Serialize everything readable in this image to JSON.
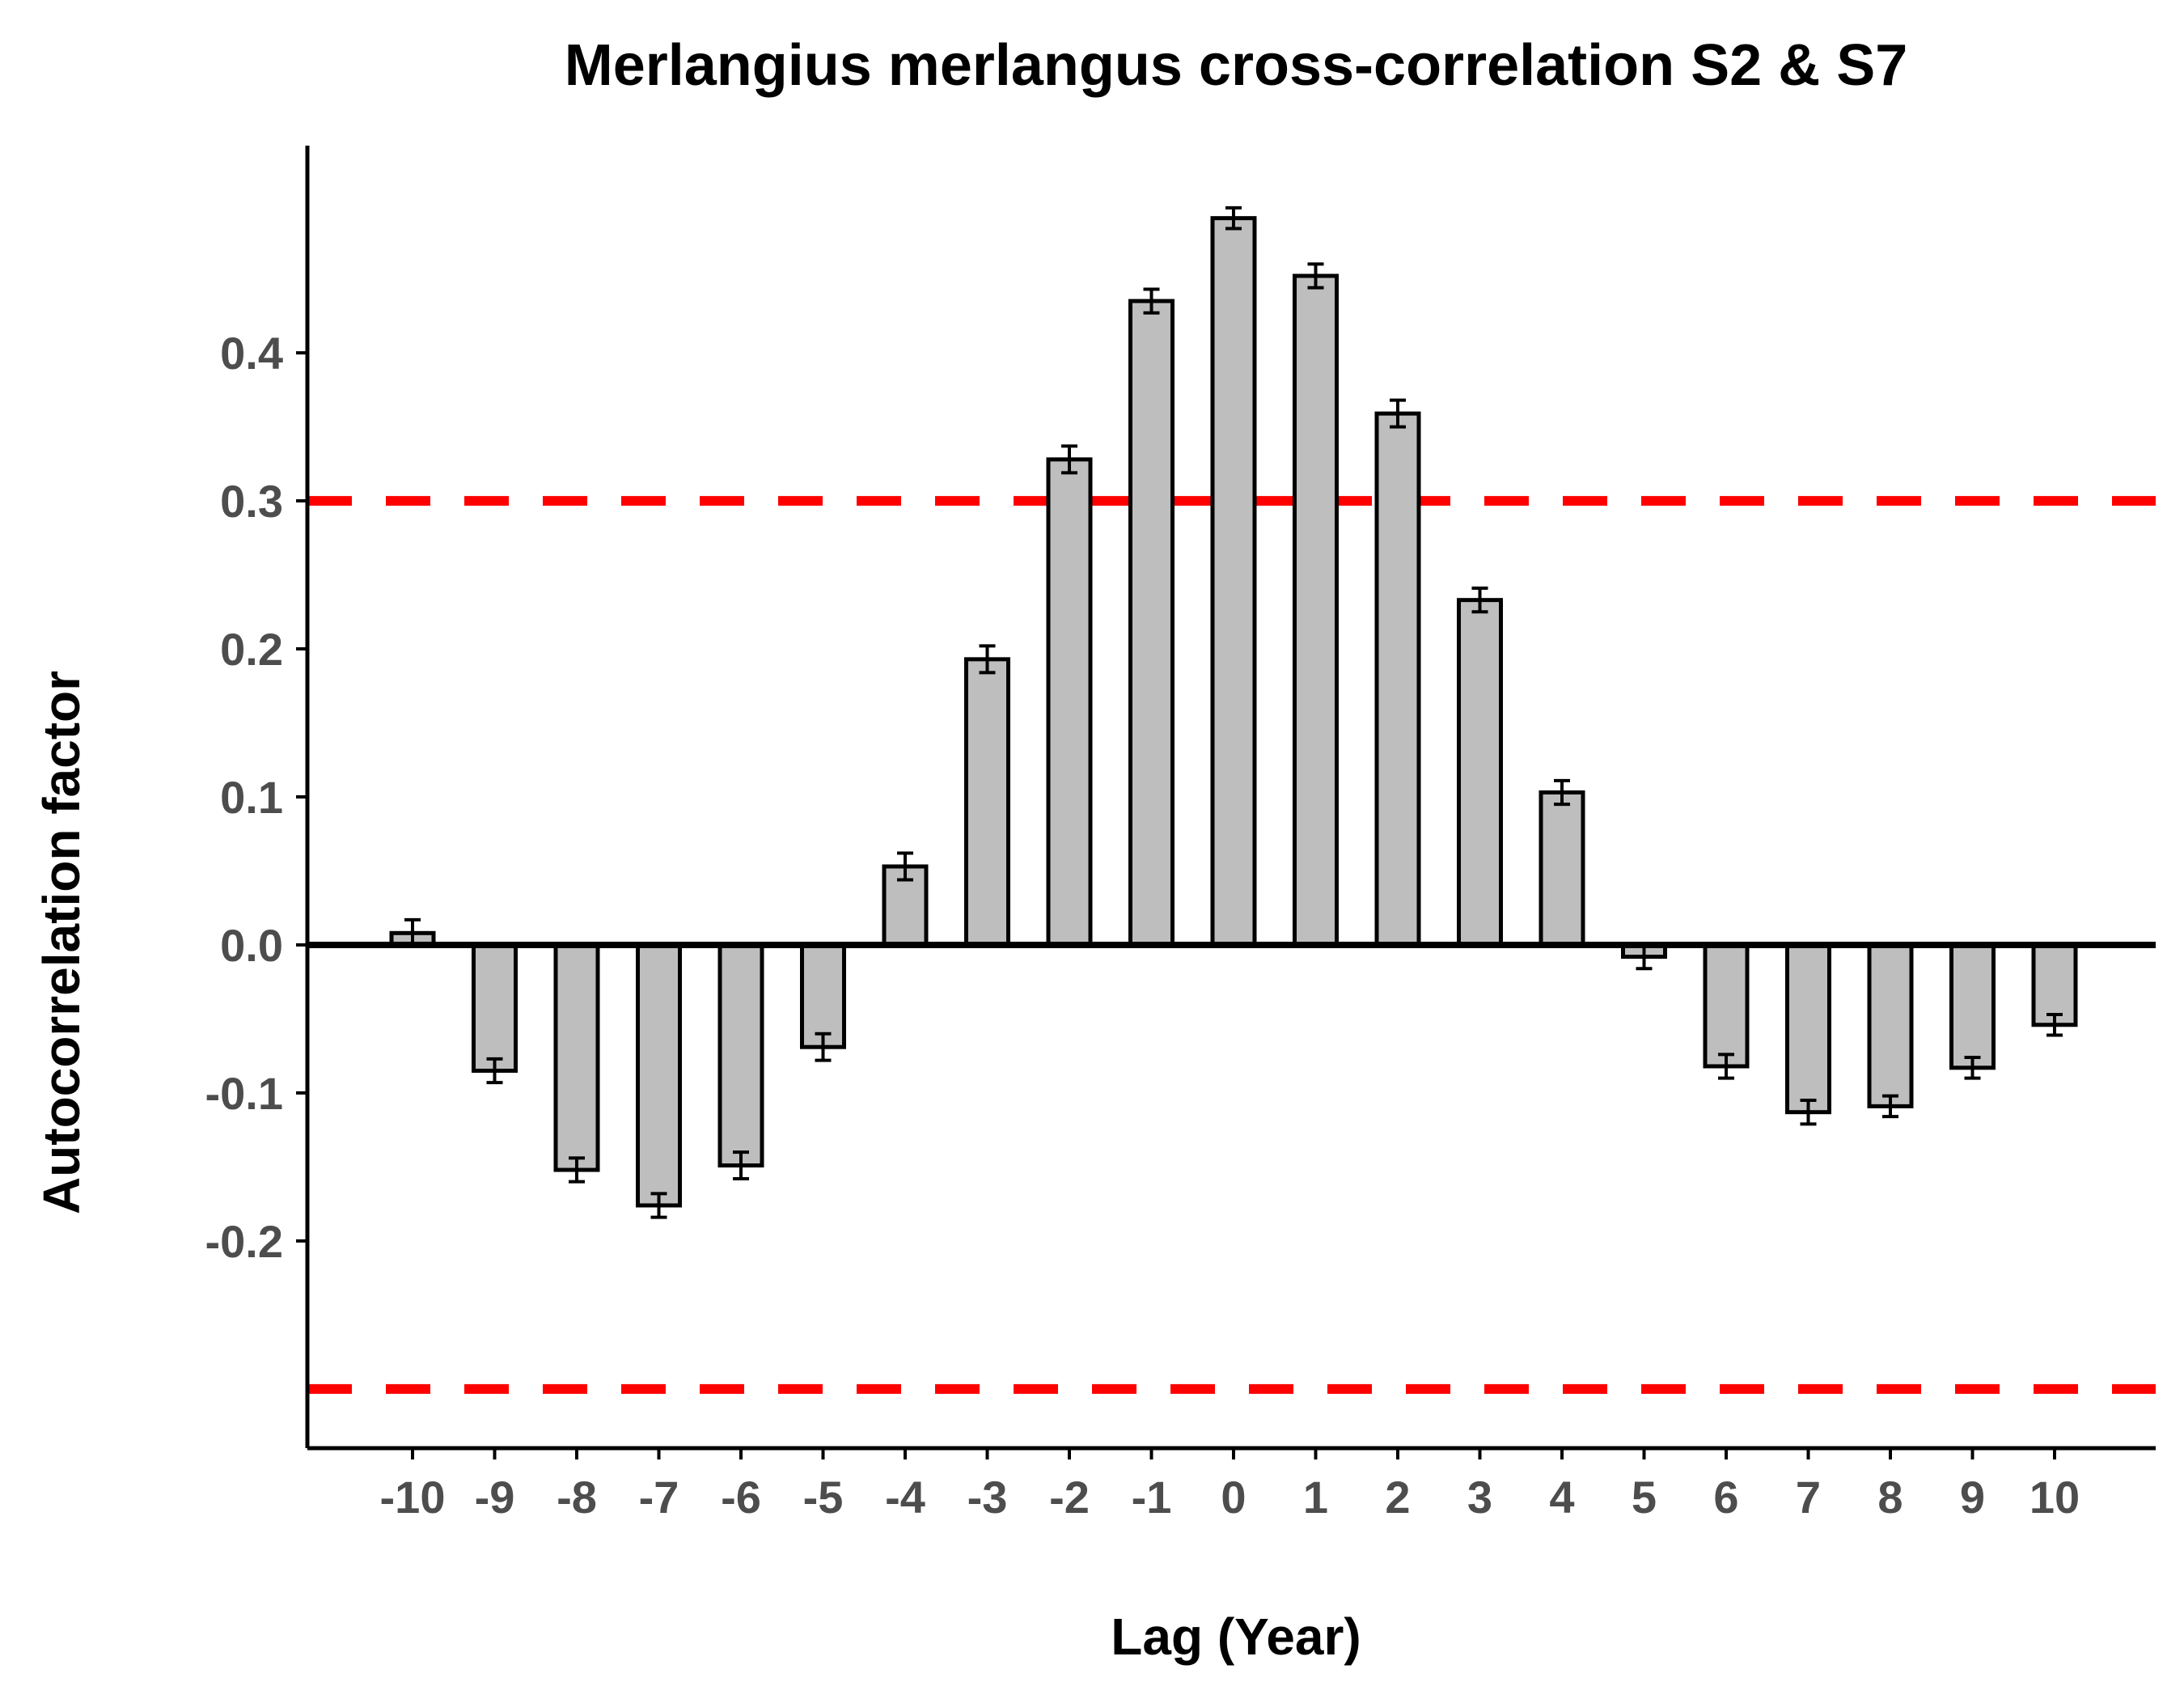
{
  "chart_data": {
    "type": "bar",
    "title": "Merlangius merlangus cross-correlation S2 & S7",
    "xlabel": "Lag (Year)",
    "ylabel": "Autocorrelation factor",
    "categories": [
      "-10",
      "-9",
      "-8",
      "-7",
      "-6",
      "-5",
      "-4",
      "-3",
      "-2",
      "-1",
      "0",
      "1",
      "2",
      "3",
      "4",
      "5",
      "6",
      "7",
      "8",
      "9",
      "10"
    ],
    "values": [
      0.008,
      -0.085,
      -0.152,
      -0.176,
      -0.149,
      -0.069,
      0.053,
      0.193,
      0.328,
      0.435,
      0.491,
      0.452,
      0.359,
      0.233,
      0.103,
      -0.008,
      -0.082,
      -0.113,
      -0.109,
      -0.083,
      -0.054
    ],
    "errors": [
      0.009,
      0.008,
      0.008,
      0.008,
      0.009,
      0.009,
      0.009,
      0.009,
      0.009,
      0.008,
      0.007,
      0.008,
      0.009,
      0.008,
      0.008,
      0.008,
      0.008,
      0.008,
      0.007,
      0.007,
      0.007
    ],
    "yticks": [
      "-0.2",
      "-0.1",
      "0.0",
      "0.1",
      "0.2",
      "0.3",
      "0.4"
    ],
    "ylim": [
      -0.34,
      0.54
    ],
    "reference_lines": [
      0.3,
      -0.3
    ],
    "colors": {
      "bar_fill": "#bebebe",
      "bar_stroke": "#000000",
      "reference_line": "#ff0000",
      "zero_line": "#000000"
    },
    "grid": false,
    "legend": "none"
  }
}
